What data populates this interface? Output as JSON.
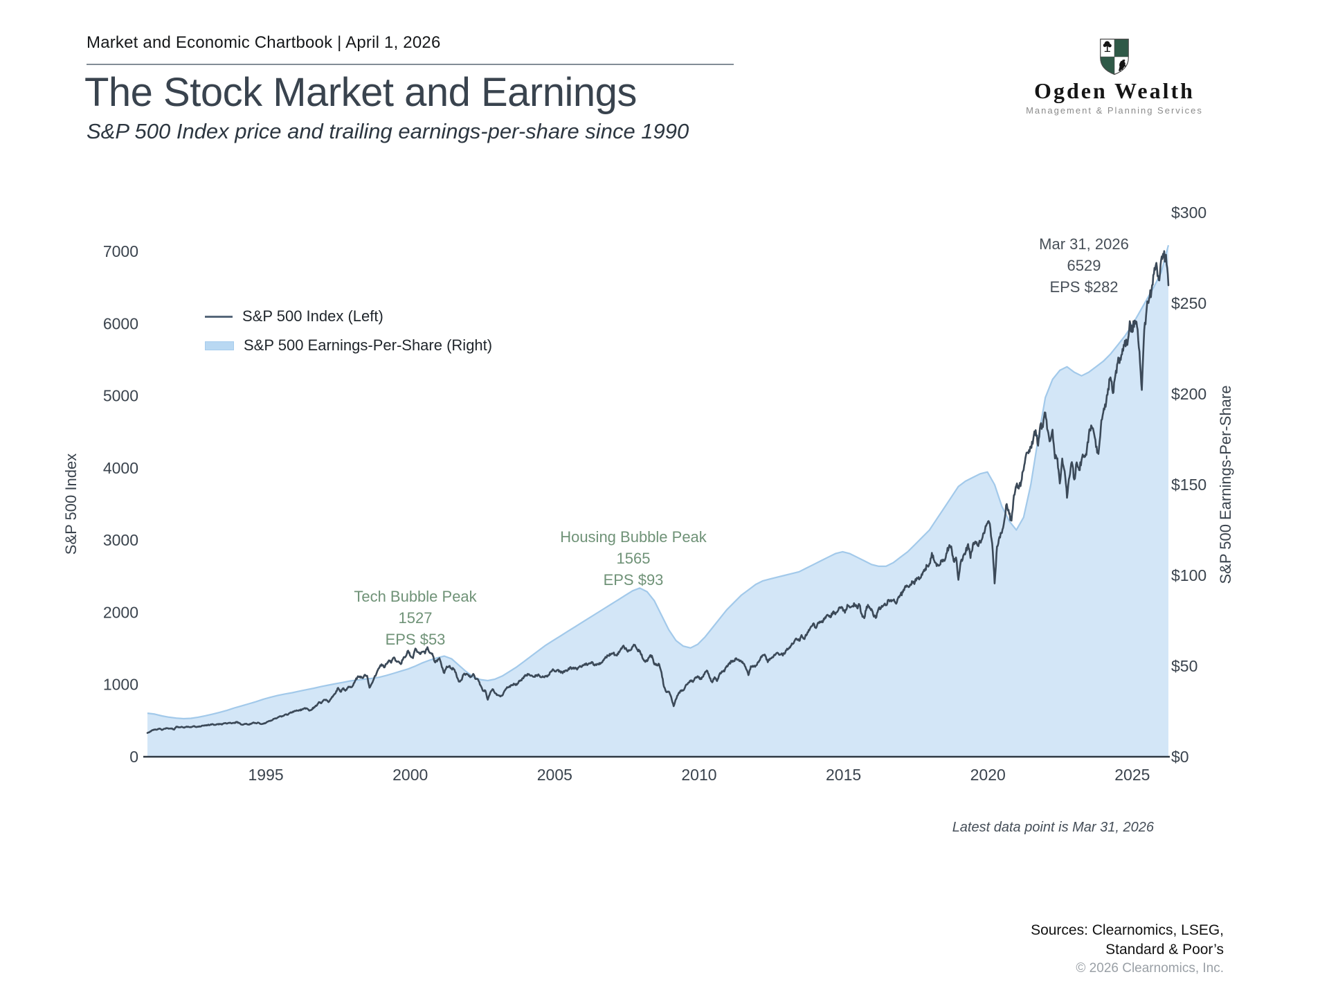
{
  "header": {
    "chartbook_line": "Market and Economic Chartbook | April 1, 2026"
  },
  "logo": {
    "name": "Ogden Wealth",
    "tagline": "Management & Planning Services",
    "shield_green": "#2f5947"
  },
  "title": "The Stock Market and Earnings",
  "subtitle": "S&P 500 Index price and trailing earnings-per-share since 1990",
  "footnote": "Latest data point is Mar 31, 2026",
  "sources_line1": "Sources: Clearnomics, LSEG,",
  "sources_line2": "Standard & Poor’s",
  "copyright": "© 2026 Clearnomics, Inc.",
  "chart_data": {
    "type": "line+area",
    "grid": false,
    "x_axis": {
      "range": [
        1990.9,
        2026.25
      ],
      "ticks": [
        1995,
        2000,
        2005,
        2010,
        2015,
        2020,
        2025
      ]
    },
    "left_axis": {
      "label": "S&P 500 Index",
      "range": [
        0,
        7000
      ],
      "ticks": [
        0,
        1000,
        2000,
        3000,
        4000,
        5000,
        6000,
        7000
      ]
    },
    "right_axis": {
      "label": "S&P 500 Earnings-Per-Share",
      "range": [
        0,
        300
      ],
      "tick_values": [
        0,
        50,
        100,
        150,
        200,
        250,
        300
      ],
      "tick_labels": [
        "$0",
        "$50",
        "$100",
        "$150",
        "$200",
        "$250",
        "$300"
      ]
    },
    "legend": {
      "position": "upper-left",
      "entries": [
        {
          "label": "S&P 500 Index (Left)",
          "swatch": "line",
          "color": "#56677a"
        },
        {
          "label": "S&P 500 Earnings-Per-Share (Right)",
          "swatch": "area",
          "color": "#b9d8f2"
        }
      ]
    },
    "annotations": [
      {
        "id": "tech-bubble",
        "title": "Tech Bubble Peak",
        "value": "1527",
        "eps": "EPS $53",
        "color": "#6f9277",
        "at_year": 2000.2
      },
      {
        "id": "housing-bubble",
        "title": "Housing Bubble Peak",
        "value": "1565",
        "eps": "EPS $93",
        "color": "#6f9277",
        "at_year": 2007.75
      },
      {
        "id": "latest",
        "title": "Mar 31, 2026",
        "value": "6529",
        "eps": "EPS $282",
        "color": "#474f58",
        "at_year": 2026.25
      }
    ],
    "series": [
      {
        "name": "S&P 500 Index (Left)",
        "axis": "left",
        "style": "line",
        "color": "#3b4958",
        "interval": "monthly",
        "start": "1990-12",
        "end": "2026-03",
        "values": [
          330,
          344,
          367,
          375,
          375,
          390,
          371,
          388,
          395,
          388,
          392,
          375,
          417,
          409,
          413,
          404,
          415,
          415,
          408,
          424,
          414,
          418,
          419,
          431,
          436,
          439,
          443,
          452,
          440,
          450,
          451,
          448,
          464,
          459,
          468,
          462,
          466,
          482,
          467,
          446,
          451,
          457,
          444,
          458,
          475,
          463,
          472,
          454,
          459,
          470,
          487,
          501,
          515,
          533,
          545,
          562,
          562,
          584,
          582,
          605,
          616,
          636,
          640,
          646,
          654,
          669,
          671,
          640,
          652,
          687,
          705,
          757,
          741,
          786,
          791,
          757,
          801,
          848,
          885,
          954,
          899,
          947,
          915,
          955,
          970,
          980,
          1049,
          1102,
          1112,
          1091,
          1134,
          1121,
          957,
          1017,
          1099,
          1164,
          1229,
          1280,
          1238,
          1286,
          1335,
          1302,
          1373,
          1329,
          1320,
          1283,
          1363,
          1389,
          1469,
          1394,
          1366,
          1499,
          1452,
          1421,
          1455,
          1431,
          1518,
          1437,
          1429,
          1315,
          1320,
          1366,
          1240,
          1160,
          1249,
          1256,
          1224,
          1211,
          1134,
          1041,
          1060,
          1139,
          1148,
          1130,
          1107,
          1147,
          1077,
          1067,
          990,
          912,
          916,
          790,
          886,
          936,
          880,
          856,
          841,
          848,
          917,
          964,
          975,
          990,
          1008,
          996,
          1051,
          1058,
          1112,
          1131,
          1145,
          1126,
          1107,
          1121,
          1141,
          1102,
          1104,
          1115,
          1130,
          1174,
          1212,
          1181,
          1204,
          1181,
          1157,
          1192,
          1191,
          1234,
          1220,
          1229,
          1207,
          1249,
          1248,
          1280,
          1281,
          1295,
          1311,
          1270,
          1270,
          1277,
          1304,
          1336,
          1378,
          1401,
          1418,
          1438,
          1407,
          1421,
          1482,
          1531,
          1503,
          1455,
          1474,
          1527,
          1549,
          1481,
          1468,
          1379,
          1331,
          1323,
          1386,
          1400,
          1280,
          1267,
          1283,
          1166,
          969,
          896,
          903,
          826,
          700,
          798,
          873,
          919,
          919,
          987,
          1021,
          1057,
          1036,
          1096,
          1115,
          1074,
          1104,
          1169,
          1187,
          1089,
          1031,
          1102,
          1049,
          1141,
          1183,
          1181,
          1258,
          1286,
          1327,
          1326,
          1364,
          1345,
          1321,
          1292,
          1219,
          1131,
          1253,
          1247,
          1258,
          1312,
          1366,
          1408,
          1398,
          1310,
          1362,
          1379,
          1407,
          1441,
          1412,
          1416,
          1426,
          1498,
          1515,
          1569,
          1598,
          1631,
          1606,
          1686,
          1633,
          1682,
          1757,
          1806,
          1848,
          1783,
          1859,
          1872,
          1884,
          1924,
          1960,
          1931,
          2003,
          1972,
          2018,
          2068,
          2059,
          1995,
          2105,
          2068,
          2086,
          2107,
          2063,
          2104,
          1972,
          1920,
          2079,
          2080,
          2044,
          1940,
          1932,
          2060,
          2065,
          2097,
          2099,
          2174,
          2171,
          2168,
          2126,
          2199,
          2239,
          2279,
          2364,
          2363,
          2384,
          2412,
          2423,
          2470,
          2472,
          2519,
          2575,
          2648,
          2674,
          2824,
          2714,
          2641,
          2648,
          2705,
          2718,
          2816,
          2902,
          2914,
          2712,
          2760,
          2450,
          2704,
          2784,
          2834,
          2946,
          2752,
          2942,
          2980,
          2926,
          2977,
          3038,
          3141,
          3231,
          3226,
          2954,
          2400,
          2912,
          3044,
          3100,
          3271,
          3500,
          3363,
          3270,
          3622,
          3756,
          3714,
          3811,
          3973,
          4181,
          4204,
          4298,
          4395,
          4523,
          4308,
          4605,
          4567,
          4766,
          4516,
          4374,
          4530,
          4132,
          4132,
          3785,
          4130,
          3955,
          3586,
          3872,
          4080,
          3840,
          4077,
          3970,
          4109,
          4169,
          4180,
          4450,
          4589,
          4508,
          4288,
          4194,
          4568,
          4770,
          4846,
          5096,
          5254,
          5036,
          5278,
          5460,
          5522,
          5648,
          5762,
          5705,
          6032,
          5882,
          6041,
          5955,
          5612,
          5080,
          5912,
          6205,
          6340,
          6460,
          6688,
          6840,
          6600,
          6880,
          6920,
          6952,
          6529
        ]
      },
      {
        "name": "S&P 500 Earnings-Per-Share (Right)",
        "axis": "right",
        "style": "area",
        "fill": "#d3e6f7",
        "stroke": "#a2c9ea",
        "interval": "quarterly",
        "start": "1990-Q4",
        "end": "2026-Q1",
        "values": [
          24,
          23.5,
          22.5,
          21.8,
          21.3,
          21,
          21.2,
          21.8,
          22.6,
          23.5,
          24.5,
          25.6,
          26.9,
          28,
          29.2,
          30.4,
          31.7,
          32.8,
          33.8,
          34.6,
          35.3,
          36.2,
          37,
          37.8,
          38.7,
          39.5,
          40.3,
          41,
          41.8,
          42.3,
          42.8,
          43.2,
          43.8,
          44.8,
          46,
          47.2,
          48.4,
          50,
          51.8,
          53.3,
          54.5,
          55.5,
          54,
          50.5,
          47,
          44,
          42.5,
          42,
          42.8,
          44.5,
          47,
          49.5,
          52.5,
          55.5,
          58.5,
          61.5,
          64,
          66.5,
          69,
          71.5,
          74,
          76.5,
          79,
          81.5,
          84,
          86.5,
          89,
          91.5,
          93,
          91,
          86,
          78,
          70,
          64,
          61,
          60,
          62,
          66,
          71,
          76,
          81,
          85,
          89,
          92,
          95,
          97,
          98,
          99,
          100,
          101,
          102,
          104,
          106,
          108,
          110,
          112,
          113,
          112,
          110,
          108,
          106,
          105,
          105,
          107,
          110,
          113,
          117,
          121,
          125,
          131,
          137,
          143,
          149,
          152,
          154,
          156,
          157,
          150,
          138,
          130,
          125,
          132,
          150,
          175,
          198,
          208,
          213,
          215,
          212,
          210,
          212,
          215,
          218,
          222,
          227,
          232,
          238,
          245,
          252,
          259,
          267,
          282
        ]
      }
    ]
  }
}
